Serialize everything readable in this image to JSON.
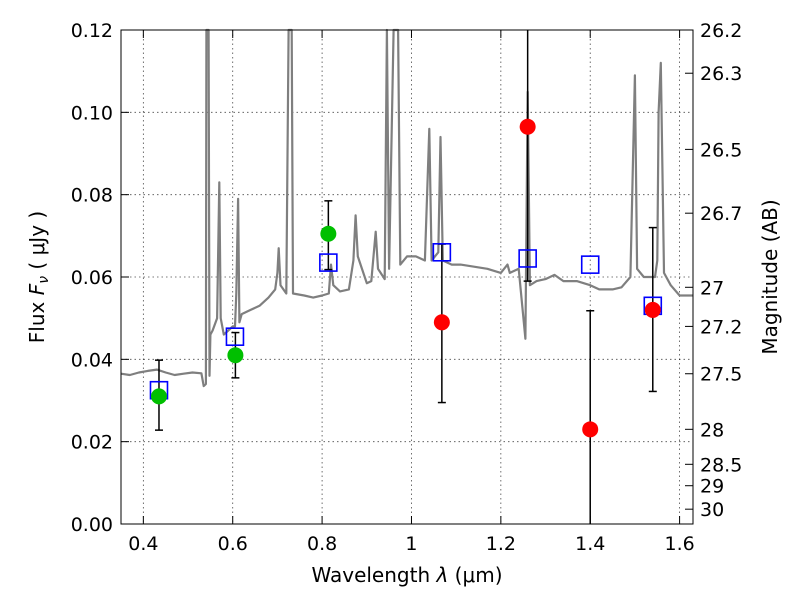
{
  "chart_data": {
    "type": "scatter",
    "title": "",
    "xlabel": "Wavelength  λ (μm)",
    "ylabel": "Flux  F_ν  ( μJy )",
    "ylabel_parts": {
      "prefix": "Flux  ",
      "symbol": "F",
      "subscript": "ν",
      "suffix": "  ( μJy )"
    },
    "xlabel_parts": {
      "prefix": "Wavelength  ",
      "symbol": "λ",
      "suffix": " (μm)"
    },
    "y2label": "Magnitude (AB)",
    "xlim": [
      0.35,
      1.63
    ],
    "ylim": [
      0,
      0.12
    ],
    "x_ticks": [
      0.4,
      0.6,
      0.8,
      1.0,
      1.2,
      1.4,
      1.6
    ],
    "x_tick_labels": [
      "0.4",
      "0.6",
      "0.8",
      "1",
      "1.2",
      "1.4",
      "1.6"
    ],
    "y_ticks": [
      0,
      0.02,
      0.04,
      0.06,
      0.08,
      0.1,
      0.12
    ],
    "y_tick_labels": [
      "0.00",
      "0.02",
      "0.04",
      "0.06",
      "0.08",
      "0.10",
      "0.12"
    ],
    "y2_ticks": [
      {
        "label": "26.2",
        "flux": 0.12
      },
      {
        "label": "26.3",
        "flux": 0.1095
      },
      {
        "label": "26.5",
        "flux": 0.091
      },
      {
        "label": "26.7",
        "flux": 0.0755
      },
      {
        "label": "27",
        "flux": 0.0575
      },
      {
        "label": "27.2",
        "flux": 0.048
      },
      {
        "label": "27.5",
        "flux": 0.0365
      },
      {
        "label": "28",
        "flux": 0.023
      },
      {
        "label": "28.5",
        "flux": 0.0145
      },
      {
        "label": "29",
        "flux": 0.0093
      },
      {
        "label": "30",
        "flux": 0.0036
      }
    ],
    "grid": true,
    "colors": {
      "spectrum": "#7f7f7f",
      "model_photometry": "#0000ff",
      "hst_points": "#00bf00",
      "nir_points": "#ff0000",
      "errorbar": "#000000"
    },
    "series": [
      {
        "key": "spectrum",
        "style": "line",
        "points": [
          [
            0.35,
            0.0365
          ],
          [
            0.37,
            0.0362
          ],
          [
            0.39,
            0.0368
          ],
          [
            0.41,
            0.0372
          ],
          [
            0.43,
            0.0375
          ],
          [
            0.45,
            0.0368
          ],
          [
            0.47,
            0.0362
          ],
          [
            0.49,
            0.0365
          ],
          [
            0.51,
            0.0368
          ],
          [
            0.53,
            0.0366
          ],
          [
            0.535,
            0.0335
          ],
          [
            0.54,
            0.034
          ],
          [
            0.541,
            0.12
          ],
          [
            0.546,
            0.12
          ],
          [
            0.548,
            0.036
          ],
          [
            0.55,
            0.046
          ],
          [
            0.555,
            0.047
          ],
          [
            0.565,
            0.05
          ],
          [
            0.57,
            0.083
          ],
          [
            0.573,
            0.05
          ],
          [
            0.58,
            0.046
          ],
          [
            0.59,
            0.047
          ],
          [
            0.6,
            0.048
          ],
          [
            0.605,
            0.048
          ],
          [
            0.608,
            0.056
          ],
          [
            0.612,
            0.079
          ],
          [
            0.615,
            0.049
          ],
          [
            0.62,
            0.051
          ],
          [
            0.64,
            0.052
          ],
          [
            0.66,
            0.053
          ],
          [
            0.68,
            0.055
          ],
          [
            0.695,
            0.057
          ],
          [
            0.7,
            0.061
          ],
          [
            0.703,
            0.067
          ],
          [
            0.707,
            0.058
          ],
          [
            0.72,
            0.056
          ],
          [
            0.725,
            0.12
          ],
          [
            0.732,
            0.12
          ],
          [
            0.735,
            0.056
          ],
          [
            0.76,
            0.0555
          ],
          [
            0.78,
            0.055
          ],
          [
            0.8,
            0.0555
          ],
          [
            0.815,
            0.056
          ],
          [
            0.82,
            0.063
          ],
          [
            0.825,
            0.058
          ],
          [
            0.84,
            0.0565
          ],
          [
            0.86,
            0.057
          ],
          [
            0.87,
            0.064
          ],
          [
            0.875,
            0.075
          ],
          [
            0.88,
            0.065
          ],
          [
            0.9,
            0.0585
          ],
          [
            0.91,
            0.059
          ],
          [
            0.92,
            0.071
          ],
          [
            0.925,
            0.062
          ],
          [
            0.94,
            0.0595
          ],
          [
            0.945,
            0.12
          ],
          [
            0.95,
            0.062
          ],
          [
            0.96,
            0.12
          ],
          [
            0.97,
            0.12
          ],
          [
            0.975,
            0.063
          ],
          [
            0.99,
            0.065
          ],
          [
            1.01,
            0.065
          ],
          [
            1.03,
            0.064
          ],
          [
            1.04,
            0.096
          ],
          [
            1.045,
            0.064
          ],
          [
            1.06,
            0.066
          ],
          [
            1.065,
            0.094
          ],
          [
            1.07,
            0.064
          ],
          [
            1.09,
            0.063
          ],
          [
            1.11,
            0.063
          ],
          [
            1.14,
            0.0625
          ],
          [
            1.17,
            0.062
          ],
          [
            1.2,
            0.061
          ],
          [
            1.215,
            0.063
          ],
          [
            1.22,
            0.061
          ],
          [
            1.24,
            0.062
          ],
          [
            1.255,
            0.045
          ],
          [
            1.26,
            0.105
          ],
          [
            1.265,
            0.058
          ],
          [
            1.28,
            0.059
          ],
          [
            1.3,
            0.0595
          ],
          [
            1.32,
            0.0605
          ],
          [
            1.34,
            0.059
          ],
          [
            1.37,
            0.059
          ],
          [
            1.4,
            0.058
          ],
          [
            1.42,
            0.057
          ],
          [
            1.45,
            0.057
          ],
          [
            1.47,
            0.0575
          ],
          [
            1.49,
            0.06
          ],
          [
            1.5,
            0.109
          ],
          [
            1.505,
            0.062
          ],
          [
            1.52,
            0.06
          ],
          [
            1.545,
            0.06
          ],
          [
            1.55,
            0.064
          ],
          [
            1.553,
            0.1
          ],
          [
            1.558,
            0.112
          ],
          [
            1.565,
            0.061
          ],
          [
            1.58,
            0.058
          ],
          [
            1.6,
            0.0555
          ],
          [
            1.63,
            0.0555
          ]
        ]
      },
      {
        "key": "model_photometry",
        "style": "open-square",
        "points": [
          {
            "x": 0.435,
            "y": 0.0325
          },
          {
            "x": 0.605,
            "y": 0.0455
          },
          {
            "x": 0.814,
            "y": 0.0635
          },
          {
            "x": 1.068,
            "y": 0.066
          },
          {
            "x": 1.26,
            "y": 0.0645
          },
          {
            "x": 1.4,
            "y": 0.063
          },
          {
            "x": 1.54,
            "y": 0.053
          }
        ]
      },
      {
        "key": "hst_points",
        "style": "filled-circle",
        "points": [
          {
            "x": 0.435,
            "y": 0.031,
            "ylo": 0.0228,
            "yhi": 0.0398
          },
          {
            "x": 0.606,
            "y": 0.041,
            "ylo": 0.0355,
            "yhi": 0.0465
          },
          {
            "x": 0.814,
            "y": 0.0705,
            "ylo": 0.0618,
            "yhi": 0.0785
          }
        ]
      },
      {
        "key": "nir_points",
        "style": "filled-circle",
        "points": [
          {
            "x": 1.068,
            "y": 0.049,
            "ylo": 0.0295,
            "yhi": 0.068
          },
          {
            "x": 1.26,
            "y": 0.0965,
            "ylo": 0.059,
            "yhi": 0.12
          },
          {
            "x": 1.4,
            "y": 0.023,
            "ylo": 0.0,
            "yhi": 0.0518
          },
          {
            "x": 1.54,
            "y": 0.052,
            "ylo": 0.0322,
            "yhi": 0.072
          }
        ]
      }
    ]
  }
}
